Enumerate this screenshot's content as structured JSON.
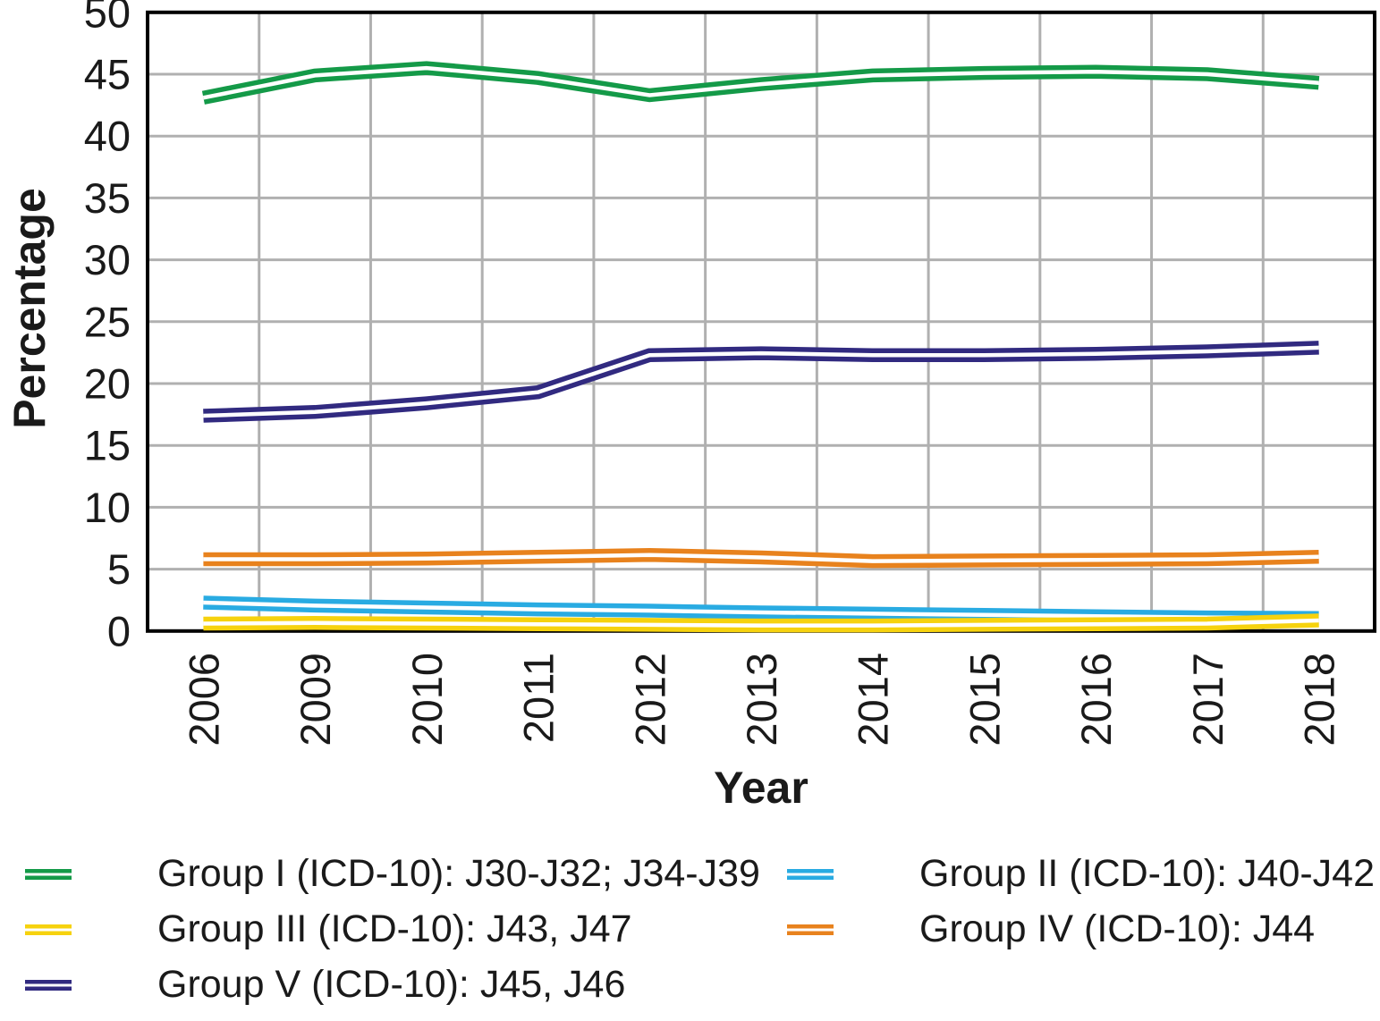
{
  "figure": {
    "background": "#ffffff"
  },
  "chart_data": {
    "type": "line",
    "title": "",
    "xlabel": "Year",
    "ylabel": "Percentage",
    "ylim": [
      0,
      50
    ],
    "ytick_step": 5,
    "grid": true,
    "legend_position": "bottom",
    "line_style": "double-stroke (colored line with white center stripe)",
    "categories": [
      "2006",
      "2009",
      "2010",
      "2011",
      "2012",
      "2013",
      "2014",
      "2015",
      "2016",
      "2017",
      "2018"
    ],
    "series": [
      {
        "name": "Group I (ICD-10): J30-J32; J34-J39",
        "color": "#149a48",
        "values": [
          43.1,
          44.9,
          45.5,
          44.7,
          43.3,
          44.2,
          44.9,
          45.1,
          45.2,
          45.0,
          44.3
        ]
      },
      {
        "name": "Group II (ICD-10): J40-J42",
        "color": "#29abe2",
        "values": [
          2.3,
          2.05,
          1.9,
          1.75,
          1.65,
          1.5,
          1.4,
          1.3,
          1.2,
          1.1,
          1.05
        ]
      },
      {
        "name": "Group III (ICD-10): J43, J47",
        "color": "#f6d20e",
        "values": [
          0.6,
          0.65,
          0.6,
          0.55,
          0.5,
          0.45,
          0.45,
          0.5,
          0.55,
          0.6,
          0.85
        ]
      },
      {
        "name": "Group IV (ICD-10): J44",
        "color": "#e8821d",
        "values": [
          5.8,
          5.8,
          5.85,
          6.0,
          6.15,
          5.95,
          5.65,
          5.7,
          5.75,
          5.8,
          6.0
        ]
      },
      {
        "name": "Group V (ICD-10): J45, J46",
        "color": "#312a80",
        "values": [
          17.4,
          17.7,
          18.4,
          19.3,
          22.3,
          22.45,
          22.3,
          22.3,
          22.4,
          22.6,
          22.9
        ]
      }
    ],
    "colors": {
      "grid": "#b0b0b0",
      "axis_border": "#000000",
      "text": "#1a1a1a"
    }
  }
}
